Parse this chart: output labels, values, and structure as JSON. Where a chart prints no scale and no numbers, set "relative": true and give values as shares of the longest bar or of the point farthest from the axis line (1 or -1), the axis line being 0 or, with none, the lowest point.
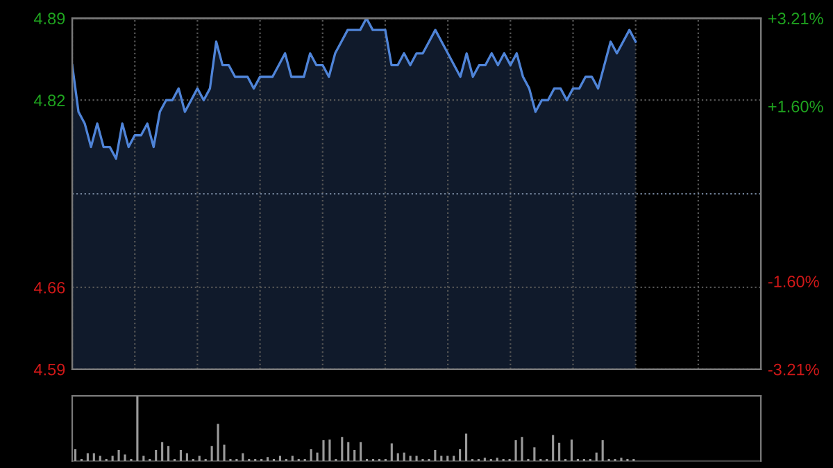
{
  "chart_data": [
    {
      "type": "area",
      "categories": [
        null,
        null,
        null,
        null,
        null,
        null,
        null,
        null,
        null,
        null,
        null,
        null,
        null,
        null,
        null,
        null,
        null,
        null,
        null,
        null,
        null,
        null,
        null,
        null,
        null,
        null,
        null,
        null,
        null,
        null,
        null,
        null,
        null,
        null,
        null,
        null,
        null,
        null,
        null,
        null,
        null,
        null,
        null,
        null,
        null,
        null,
        null,
        null,
        null,
        null,
        null,
        null,
        null,
        null,
        null,
        null,
        null,
        null,
        null,
        null,
        null,
        null,
        null,
        null,
        null,
        null,
        null,
        null,
        null,
        null,
        null,
        null,
        null,
        null,
        null,
        null,
        null,
        null,
        null,
        null,
        null,
        null,
        null,
        null,
        null,
        null,
        null,
        null,
        null,
        null,
        null,
        null,
        null,
        null,
        null,
        null,
        null,
        null,
        null,
        null,
        null,
        null,
        null,
        null,
        null,
        null,
        null,
        null,
        null,
        null,
        null
      ],
      "series": [
        {
          "color": "#4f84d8",
          "values": [
            4.85,
            4.81,
            4.8,
            4.78,
            4.8,
            4.78,
            4.78,
            4.77,
            4.8,
            4.78,
            4.79,
            4.79,
            4.8,
            4.78,
            4.81,
            4.82,
            4.82,
            4.83,
            4.81,
            4.82,
            4.83,
            4.82,
            4.83,
            4.87,
            4.85,
            4.85,
            4.84,
            4.84,
            4.84,
            4.83,
            4.84,
            4.84,
            4.84,
            4.85,
            4.86,
            4.84,
            4.84,
            4.84,
            4.86,
            4.85,
            4.85,
            4.84,
            4.86,
            4.87,
            4.88,
            4.88,
            4.88,
            4.89,
            4.88,
            4.88,
            4.88,
            4.85,
            4.85,
            4.86,
            4.85,
            4.86,
            4.86,
            4.87,
            4.88,
            4.87,
            4.86,
            4.85,
            4.84,
            4.86,
            4.84,
            4.85,
            4.85,
            4.86,
            4.85,
            4.86,
            4.85,
            4.86,
            4.84,
            4.83,
            4.81,
            4.82,
            4.82,
            4.83,
            4.83,
            4.82,
            4.83,
            4.83,
            4.84,
            4.84,
            4.83,
            4.85,
            4.87,
            4.86,
            4.87,
            4.88,
            4.87,
            null,
            null,
            null,
            null,
            null,
            null,
            null,
            null,
            null,
            null,
            null,
            null,
            null,
            null,
            null,
            null,
            null,
            null,
            null,
            null
          ]
        }
      ],
      "ylim": [
        4.59,
        4.89
      ],
      "yticks": [
        4.59,
        4.66,
        4.82,
        4.89
      ],
      "y2lim": [
        -3.21,
        3.21
      ],
      "y2ticks": [
        {
          "value": -3.21,
          "label": "-3.21%"
        },
        {
          "value": -1.6,
          "label": "-1.60%"
        },
        {
          "value": 1.6,
          "label": "+1.60%"
        },
        {
          "value": 3.21,
          "label": "+3.21%"
        }
      ],
      "ref_lines": [
        {
          "axis": "y",
          "value": 4.74,
          "color": "#6f7f96",
          "line_style": "dotted"
        }
      ],
      "grid": true
    },
    {
      "type": "bar",
      "relative": true,
      "categories": [
        null,
        null,
        null,
        null,
        null,
        null,
        null,
        null,
        null,
        null,
        null,
        null,
        null,
        null,
        null,
        null,
        null,
        null,
        null,
        null,
        null,
        null,
        null,
        null,
        null,
        null,
        null,
        null,
        null,
        null,
        null,
        null,
        null,
        null,
        null,
        null,
        null,
        null,
        null,
        null,
        null,
        null,
        null,
        null,
        null,
        null,
        null,
        null,
        null,
        null,
        null,
        null,
        null,
        null,
        null,
        null,
        null,
        null,
        null,
        null,
        null,
        null,
        null,
        null,
        null,
        null,
        null,
        null,
        null,
        null,
        null,
        null,
        null,
        null,
        null,
        null,
        null,
        null,
        null,
        null,
        null,
        null,
        null,
        null,
        null,
        null,
        null,
        null,
        null,
        null,
        null,
        null,
        null,
        null,
        null,
        null,
        null,
        null,
        null,
        null,
        null,
        null,
        null,
        null,
        null,
        null,
        null,
        null,
        null,
        null,
        null
      ],
      "series": [
        {
          "color": "#9a9a9a",
          "values": [
            0.18,
            0.03,
            0.12,
            0.12,
            0.08,
            0.03,
            0.08,
            0.17,
            0.1,
            0.03,
            1.0,
            0.08,
            0.03,
            0.17,
            0.29,
            0.23,
            0.03,
            0.17,
            0.12,
            0.03,
            0.08,
            0.03,
            0.23,
            0.57,
            0.25,
            0.03,
            0.03,
            0.12,
            0.03,
            0.03,
            0.03,
            0.06,
            0.03,
            0.08,
            0.03,
            0.08,
            0.03,
            0.03,
            0.18,
            0.13,
            0.32,
            0.33,
            0.03,
            0.37,
            0.29,
            0.17,
            0.29,
            0.03,
            0.03,
            0.03,
            0.03,
            0.27,
            0.12,
            0.13,
            0.08,
            0.08,
            0.03,
            0.03,
            0.17,
            0.08,
            0.08,
            0.08,
            0.18,
            0.42,
            0.03,
            0.03,
            0.05,
            0.03,
            0.05,
            0.03,
            0.03,
            0.32,
            0.37,
            0.03,
            0.21,
            0.03,
            0.03,
            0.4,
            0.28,
            0.03,
            0.33,
            0.03,
            0.03,
            0.03,
            0.13,
            0.32,
            0.03,
            0.03,
            0.05,
            0.03,
            0.03,
            null,
            null,
            null,
            null,
            null,
            null,
            null,
            null,
            null,
            null,
            null,
            null,
            null,
            null,
            null,
            null,
            null,
            null,
            null,
            null
          ]
        }
      ]
    }
  ]
}
